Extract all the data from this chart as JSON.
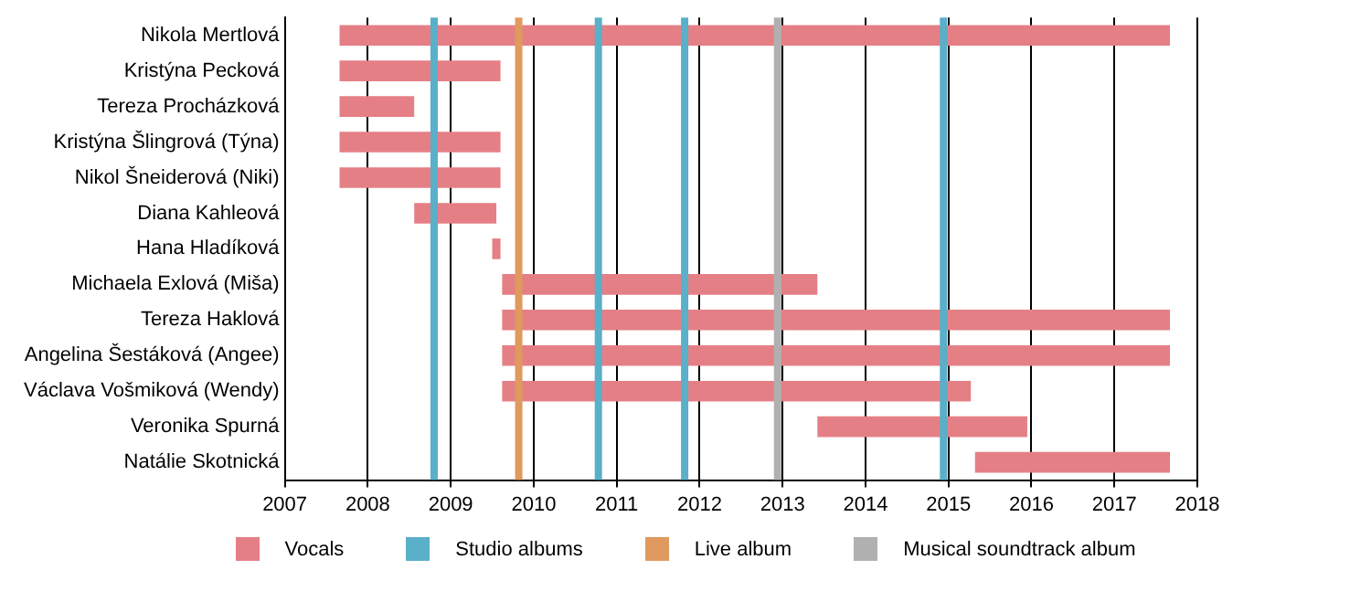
{
  "chart_data": {
    "type": "bar",
    "orientation": "horizontal",
    "categories": [
      "Nikola Mertlová",
      "Kristýna Pecková",
      "Tereza Procházková",
      "Kristýna Šlingrová (Týna)",
      "Nikol Šneiderová (Niki)",
      "Diana Kahleová",
      "Hana Hladíková",
      "Michaela Exlová (Miša)",
      "Tereza Haklová",
      "Angelina Šestáková (Angee)",
      "Václava Vošmiková (Wendy)",
      "Veronika Spurná",
      "Natálie Skotnická"
    ],
    "series": [
      {
        "name": "Vocals",
        "color": "#e57f86",
        "base": [
          2007.66,
          2007.66,
          2007.66,
          2007.66,
          2007.66,
          2008.56,
          2009.5,
          2009.62,
          2009.62,
          2009.62,
          2009.62,
          2013.42,
          2015.32
        ],
        "values": [
          10.01,
          1.94,
          0.9,
          1.94,
          1.94,
          0.99,
          0.1,
          3.8,
          8.05,
          8.05,
          5.65,
          2.53,
          2.35
        ]
      }
    ],
    "xlim": [
      2007,
      2018
    ],
    "xticks": [
      2007,
      2008,
      2009,
      2010,
      2011,
      2012,
      2013,
      2014,
      2015,
      2016,
      2017,
      2018
    ],
    "grid": "x",
    "legend": "bottom",
    "ref_lines": [
      {
        "axis": "x",
        "value": 2008.8,
        "label": "Studio albums",
        "color": "#5aafc9"
      },
      {
        "axis": "x",
        "value": 2010.78,
        "color": "#5aafc9"
      },
      {
        "axis": "x",
        "value": 2011.82,
        "color": "#5aafc9"
      },
      {
        "axis": "x",
        "value": 2014.94,
        "color": "#5aafc9"
      },
      {
        "axis": "x",
        "value": 2009.82,
        "label": "Live album",
        "color": "#e0995e"
      },
      {
        "axis": "x",
        "value": 2012.94,
        "label": "Musical soundtrack album",
        "color": "#b0b0b0"
      }
    ]
  }
}
